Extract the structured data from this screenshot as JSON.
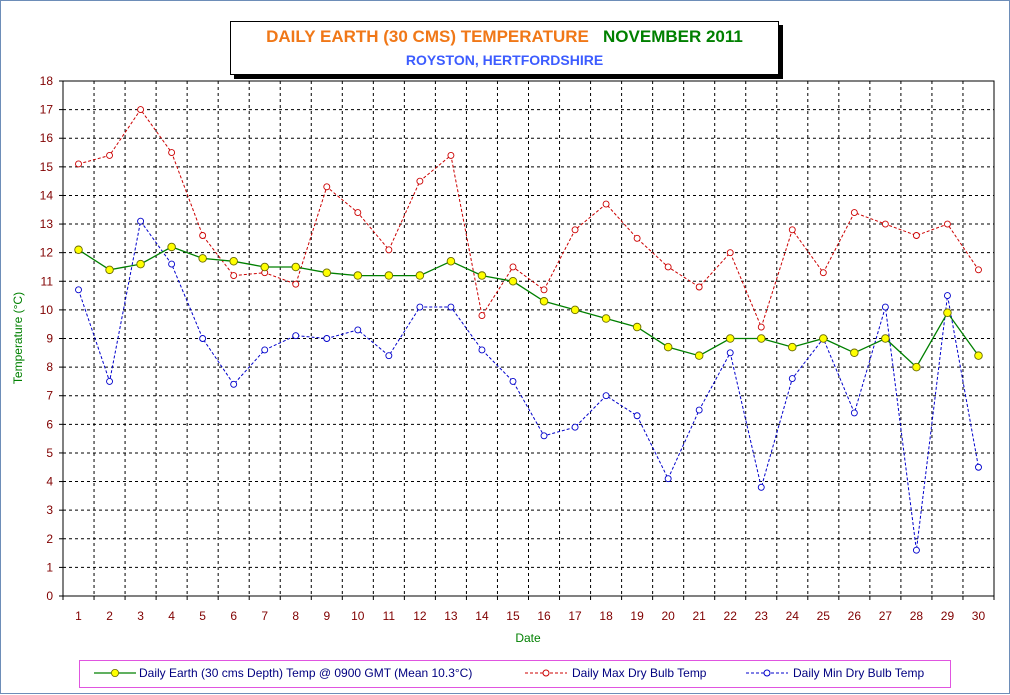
{
  "title": {
    "line1": "DAILY EARTH (30 CMS) TEMPERATURE",
    "line1_month": "NOVEMBER 2011",
    "line2": "ROYSTON, HERTFORDSHIRE"
  },
  "colors": {
    "title_orange": "#f07818",
    "title_green": "#008000",
    "subtitle_blue": "#3c5cff",
    "earth_line": "#008000",
    "earth_marker_fill": "#ffff00",
    "max_series": "#cc0000",
    "min_series": "#0000cc",
    "axis_label": "#008000",
    "tick_label": "#800000",
    "grid": "#000000",
    "plot_bg": "#ffffff"
  },
  "chart_data": {
    "type": "line",
    "xlabel": "Date",
    "ylabel": "Temperature (°C)",
    "ylim": [
      0,
      18
    ],
    "yticks": [
      0,
      1,
      2,
      3,
      4,
      5,
      6,
      7,
      8,
      9,
      10,
      11,
      12,
      13,
      14,
      15,
      16,
      17,
      18
    ],
    "grid": true,
    "legend_position": "bottom",
    "x": [
      1,
      2,
      3,
      4,
      5,
      6,
      7,
      8,
      9,
      10,
      11,
      12,
      13,
      14,
      15,
      16,
      17,
      18,
      19,
      20,
      21,
      22,
      23,
      24,
      25,
      26,
      27,
      28,
      29,
      30
    ],
    "series": [
      {
        "name": "Daily Earth (30 cms Depth) Temp @ 0900 GMT (Mean 10.3°C)",
        "style": "solid line, yellow circle markers",
        "values": [
          12.1,
          11.4,
          11.6,
          12.2,
          11.8,
          11.7,
          11.5,
          11.5,
          11.3,
          11.2,
          11.2,
          11.2,
          11.7,
          11.2,
          11.0,
          10.3,
          10.0,
          9.7,
          9.4,
          8.7,
          8.4,
          9.0,
          9.0,
          8.7,
          9.0,
          8.5,
          9.0,
          8.0,
          9.9,
          8.4
        ]
      },
      {
        "name": "Daily Max Dry Bulb Temp",
        "style": "dashed line, open circle markers",
        "values": [
          15.1,
          15.4,
          17.0,
          15.5,
          12.6,
          11.2,
          11.3,
          10.9,
          14.3,
          13.4,
          12.1,
          14.5,
          15.4,
          9.8,
          11.5,
          10.7,
          12.8,
          13.7,
          12.5,
          11.5,
          10.8,
          12.0,
          9.4,
          12.8,
          11.3,
          13.4,
          13.0,
          12.6,
          13.0,
          11.4
        ]
      },
      {
        "name": "Daily Min Dry Bulb Temp",
        "style": "dashed line, open circle markers",
        "values": [
          10.7,
          7.5,
          13.1,
          11.6,
          9.0,
          7.4,
          8.6,
          9.1,
          9.0,
          9.3,
          8.4,
          10.1,
          10.1,
          8.6,
          7.5,
          5.6,
          5.9,
          7.0,
          6.3,
          4.1,
          6.5,
          8.5,
          3.8,
          7.6,
          9.0,
          6.4,
          10.1,
          1.6,
          10.5,
          4.5
        ]
      }
    ]
  }
}
